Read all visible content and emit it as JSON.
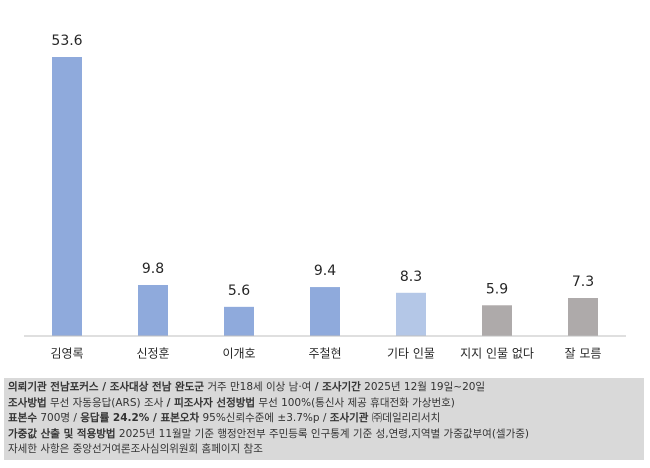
{
  "chart_data": {
    "type": "bar",
    "categories": [
      "김영록",
      "신정훈",
      "이개호",
      "주철현",
      "기타 인물",
      "지지 인물 없다",
      "잘 모름"
    ],
    "values": [
      53.6,
      9.8,
      5.6,
      9.4,
      8.3,
      5.9,
      7.3
    ],
    "colors": [
      "#8faadc",
      "#8faadc",
      "#8faadc",
      "#8faadc",
      "#b4c7e7",
      "#aeaaaa",
      "#aeaaaa"
    ]
  },
  "footer": {
    "lines": [
      [
        {
          "text": "의뢰기관 전남포커스 / 조사대상 전남 완도군",
          "bold": true
        },
        {
          "text": "거주 만18세 이상 남·여",
          "bold": false
        },
        {
          "text": "/ 조사기간",
          "bold": true
        },
        {
          "text": "2025년 12월 19일~20일",
          "bold": false
        }
      ],
      [
        {
          "text": "조사방법",
          "bold": true
        },
        {
          "text": "무선 자동응답(ARS) 조사",
          "bold": false
        },
        {
          "text": "/ 피조사자 선정방법",
          "bold": true
        },
        {
          "text": "무선 100%(통신사 제공 휴대전화 가상번호)",
          "bold": false
        }
      ],
      [
        {
          "text": "표본수",
          "bold": true
        },
        {
          "text": "700명 /",
          "bold": false
        },
        {
          "text": "응답률 24.2% / 표본오차",
          "bold": true
        },
        {
          "text": "95%신뢰수준에 ±3.7%p /",
          "bold": false
        },
        {
          "text": "조사기관",
          "bold": true
        },
        {
          "text": "㈜데일리리서치",
          "bold": false
        }
      ],
      [
        {
          "text": "가중값 산출 및 적용방법",
          "bold": true
        },
        {
          "text": "2025년 11월말 기준 행정안전부 주민등록 인구통계 기준 성,연령,지역별 가중값부여(셀가중)",
          "bold": false
        }
      ],
      [
        {
          "text": "자세한 사항은 중앙선거여론조사심의위원회 홈페이지 참조",
          "bold": false
        }
      ]
    ]
  }
}
